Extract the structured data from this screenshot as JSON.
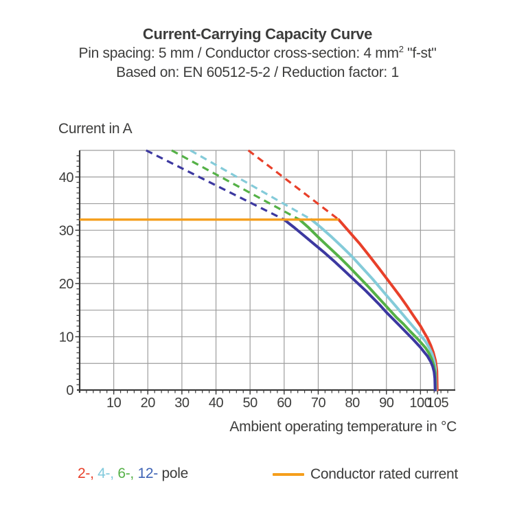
{
  "header": {
    "title": "Current-Carrying Capacity Curve",
    "subtitle_prefix": "Pin spacing: 5 mm / Conductor cross-section: 4 mm",
    "subtitle_sup": "2",
    "subtitle_suffix": " \"f-st\"",
    "basis": "Based on: EN 60512-5-2 / Reduction factor: 1"
  },
  "legend": {
    "pole_entries": [
      {
        "label": "2-, ",
        "color": "#E8402A"
      },
      {
        "label": "4-, ",
        "color": "#7FC9DC"
      },
      {
        "label": "6-, ",
        "color": "#55B147"
      },
      {
        "label": "12-",
        "color": "#3E63B5"
      }
    ],
    "pole_suffix": " pole",
    "rated_label": "Conductor rated current",
    "rated_color": "#F59E1B"
  },
  "chart_data": {
    "type": "line",
    "title": "Current-Carrying Capacity Curve",
    "subtitle": "Pin spacing: 5 mm / Conductor cross-section: 4 mm² \"f-st\"",
    "standard": "Based on: EN 60512-5-2 / Reduction factor: 1",
    "xlabel": "Ambient operating temperature in °C",
    "ylabel": "Current in A",
    "xlim": [
      0,
      110
    ],
    "ylim": [
      0,
      45
    ],
    "x_tick_labels": [
      10,
      20,
      30,
      40,
      50,
      60,
      70,
      80,
      90,
      100,
      105
    ],
    "y_tick_labels": [
      0,
      10,
      20,
      30,
      40
    ],
    "x_grid_step": 10,
    "y_grid_step": 5,
    "x_minor_tick_step": 2,
    "y_minor_tick_step": 1,
    "grid": true,
    "colors": {
      "grid": "#9D9D9D",
      "axis": "#3A3A3A",
      "text": "#3C3C3B"
    },
    "rated_current": {
      "label": "Conductor rated current",
      "value_A": 32,
      "x_start": 0,
      "x_end": 76,
      "color": "#F59E1B"
    },
    "series": [
      {
        "name": "2-pole",
        "color": "#E8402A",
        "dashed_points": [
          [
            49.5,
            45
          ],
          [
            76,
            32
          ]
        ],
        "solid_points": [
          [
            76,
            32
          ],
          [
            79,
            29.8
          ],
          [
            82,
            27.6
          ],
          [
            85,
            25.2
          ],
          [
            88,
            22.7
          ],
          [
            90,
            21.0
          ],
          [
            92,
            19.3
          ],
          [
            94,
            17.6
          ],
          [
            96,
            15.8
          ],
          [
            98,
            13.9
          ],
          [
            100,
            12.0
          ],
          [
            101,
            10.9
          ],
          [
            102,
            9.8
          ],
          [
            103,
            8.4
          ],
          [
            103.8,
            7.0
          ],
          [
            104.4,
            5.5
          ],
          [
            104.8,
            3.6
          ],
          [
            104.9,
            0
          ]
        ]
      },
      {
        "name": "4-pole",
        "color": "#84CBD9",
        "dashed_points": [
          [
            32.5,
            45
          ],
          [
            68,
            32
          ]
        ],
        "solid_points": [
          [
            68,
            32
          ],
          [
            71,
            30.4
          ],
          [
            74,
            28.7
          ],
          [
            77,
            26.9
          ],
          [
            80,
            25.0
          ],
          [
            83,
            22.9
          ],
          [
            86,
            20.8
          ],
          [
            88,
            19.3
          ],
          [
            90,
            17.8
          ],
          [
            92,
            16.3
          ],
          [
            94,
            14.8
          ],
          [
            96,
            13.3
          ],
          [
            98,
            11.8
          ],
          [
            100,
            10.3
          ],
          [
            101.5,
            9.1
          ],
          [
            102.5,
            8.0
          ],
          [
            103.4,
            6.8
          ],
          [
            104,
            5.5
          ],
          [
            104.4,
            4.0
          ],
          [
            104.5,
            0
          ]
        ]
      },
      {
        "name": "6-pole",
        "color": "#55B147",
        "dashed_points": [
          [
            27,
            45
          ],
          [
            64.5,
            32
          ]
        ],
        "solid_points": [
          [
            64.5,
            32
          ],
          [
            67,
            30.6
          ],
          [
            70,
            28.7
          ],
          [
            73,
            26.9
          ],
          [
            76,
            25.1
          ],
          [
            79,
            23.2
          ],
          [
            82,
            21.2
          ],
          [
            85,
            19.2
          ],
          [
            87,
            17.8
          ],
          [
            89,
            16.4
          ],
          [
            91,
            15.0
          ],
          [
            93,
            13.6
          ],
          [
            95,
            12.4
          ],
          [
            97,
            11.0
          ],
          [
            99,
            9.7
          ],
          [
            100,
            9.0
          ],
          [
            101.5,
            7.9
          ],
          [
            102.5,
            6.9
          ],
          [
            103.3,
            5.8
          ],
          [
            103.9,
            4.6
          ],
          [
            104.3,
            3.2
          ],
          [
            104.35,
            0
          ]
        ]
      },
      {
        "name": "12-pole",
        "color": "#3C38A0",
        "dashed_points": [
          [
            19.5,
            45
          ],
          [
            60,
            32
          ]
        ],
        "solid_points": [
          [
            60,
            32
          ],
          [
            63,
            30.5
          ],
          [
            66,
            28.9
          ],
          [
            69,
            27.3
          ],
          [
            72,
            25.7
          ],
          [
            75,
            24.0
          ],
          [
            78,
            22.2
          ],
          [
            81,
            20.4
          ],
          [
            84,
            18.6
          ],
          [
            86,
            17.3
          ],
          [
            88,
            16.0
          ],
          [
            90,
            14.6
          ],
          [
            92,
            13.3
          ],
          [
            94,
            12.0
          ],
          [
            96,
            10.7
          ],
          [
            98,
            9.4
          ],
          [
            100,
            8.0
          ],
          [
            101,
            7.2
          ],
          [
            102,
            6.4
          ],
          [
            103,
            5.3
          ],
          [
            103.6,
            4.4
          ],
          [
            104,
            3.4
          ],
          [
            104.2,
            2.2
          ],
          [
            104.3,
            0
          ]
        ]
      }
    ]
  }
}
